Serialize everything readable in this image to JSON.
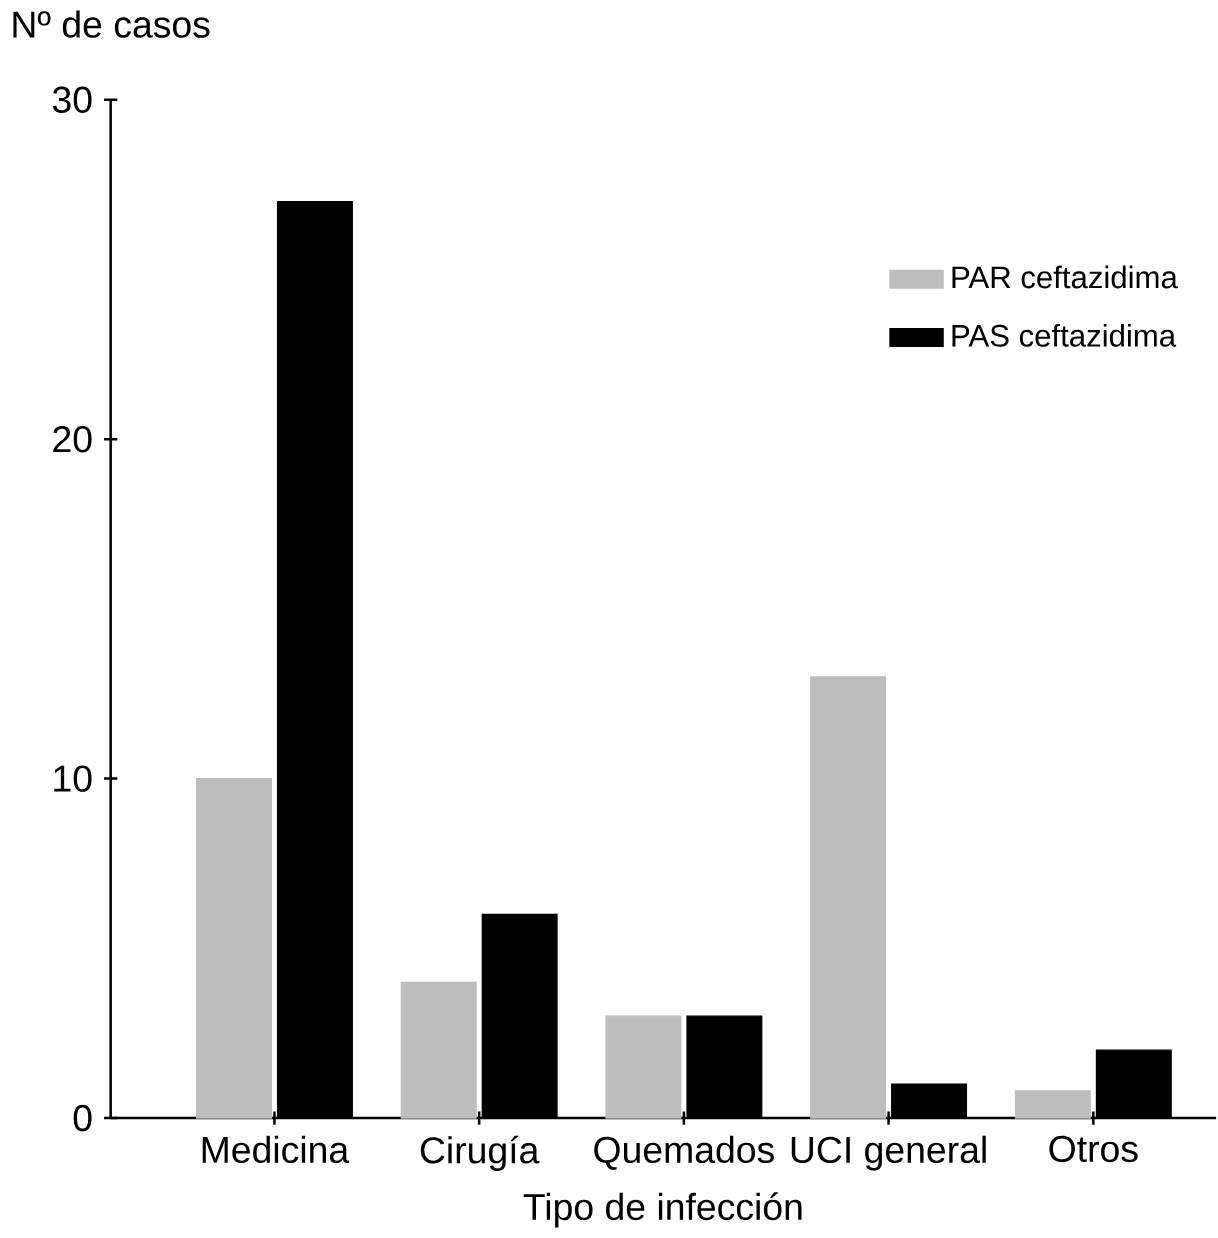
{
  "chart_data": {
    "type": "bar",
    "xlabel": "Tipo de infección",
    "ylabel": "Nº de casos",
    "categories": [
      "Medicina",
      "Cirugía",
      "Quemados",
      "UCI general",
      "Otros"
    ],
    "series": [
      {
        "name": "PAR ceftazidima",
        "color": "#bdbdbd",
        "values": [
          10,
          4,
          3,
          13,
          0.8
        ]
      },
      {
        "name": "PAS ceftazidima",
        "color": "#000000",
        "values": [
          27,
          6,
          3,
          1,
          2
        ]
      }
    ],
    "ylim": [
      0,
      30
    ],
    "yticks": [
      0,
      10,
      20,
      30
    ],
    "grid": false,
    "legend": "top right"
  }
}
